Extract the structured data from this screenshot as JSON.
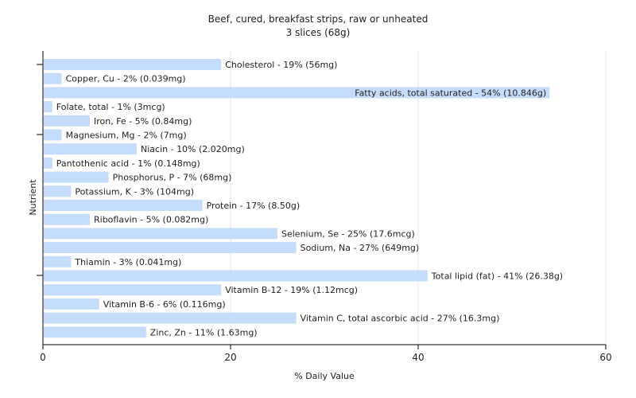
{
  "chart_data": {
    "type": "bar",
    "orientation": "horizontal",
    "title": "Beef, cured, breakfast strips, raw or unheated",
    "subtitle": "3 slices (68g)",
    "xlabel": "% Daily Value",
    "ylabel": "Nutrient",
    "xlim": [
      0,
      60
    ],
    "xticks": [
      0,
      20,
      40,
      60
    ],
    "grid": "vertical",
    "bar_color": "#c6dcfb",
    "categories": [
      "Cholesterol",
      "Copper, Cu",
      "Fatty acids, total saturated",
      "Folate, total",
      "Iron, Fe",
      "Magnesium, Mg",
      "Niacin",
      "Pantothenic acid",
      "Phosphorus, P",
      "Potassium, K",
      "Protein",
      "Riboflavin",
      "Selenium, Se",
      "Sodium, Na",
      "Thiamin",
      "Total lipid (fat)",
      "Vitamin B-12",
      "Vitamin B-6",
      "Vitamin C, total ascorbic acid",
      "Zinc, Zn"
    ],
    "values": [
      19,
      2,
      54,
      1,
      5,
      2,
      10,
      1,
      7,
      3,
      17,
      5,
      25,
      27,
      3,
      41,
      19,
      6,
      27,
      11
    ],
    "labels": [
      "Cholesterol - 19% (56mg)",
      "Copper, Cu - 2% (0.039mg)",
      "Fatty acids, total saturated - 54% (10.846g)",
      "Folate, total - 1% (3mcg)",
      "Iron, Fe - 5% (0.84mg)",
      "Magnesium, Mg - 2% (7mg)",
      "Niacin - 10% (2.020mg)",
      "Pantothenic acid - 1% (0.148mg)",
      "Phosphorus, P - 7% (68mg)",
      "Potassium, K - 3% (104mg)",
      "Protein - 17% (8.50g)",
      "Riboflavin - 5% (0.082mg)",
      "Selenium, Se - 25% (17.6mcg)",
      "Sodium, Na - 27% (649mg)",
      "Thiamin - 3% (0.041mg)",
      "Total lipid (fat) - 41% (26.38g)",
      "Vitamin B-12 - 19% (1.12mcg)",
      "Vitamin B-6 - 6% (0.116mg)",
      "Vitamin C, total ascorbic acid - 27% (16.3mg)",
      "Zinc, Zn - 11% (1.63mg)"
    ]
  }
}
